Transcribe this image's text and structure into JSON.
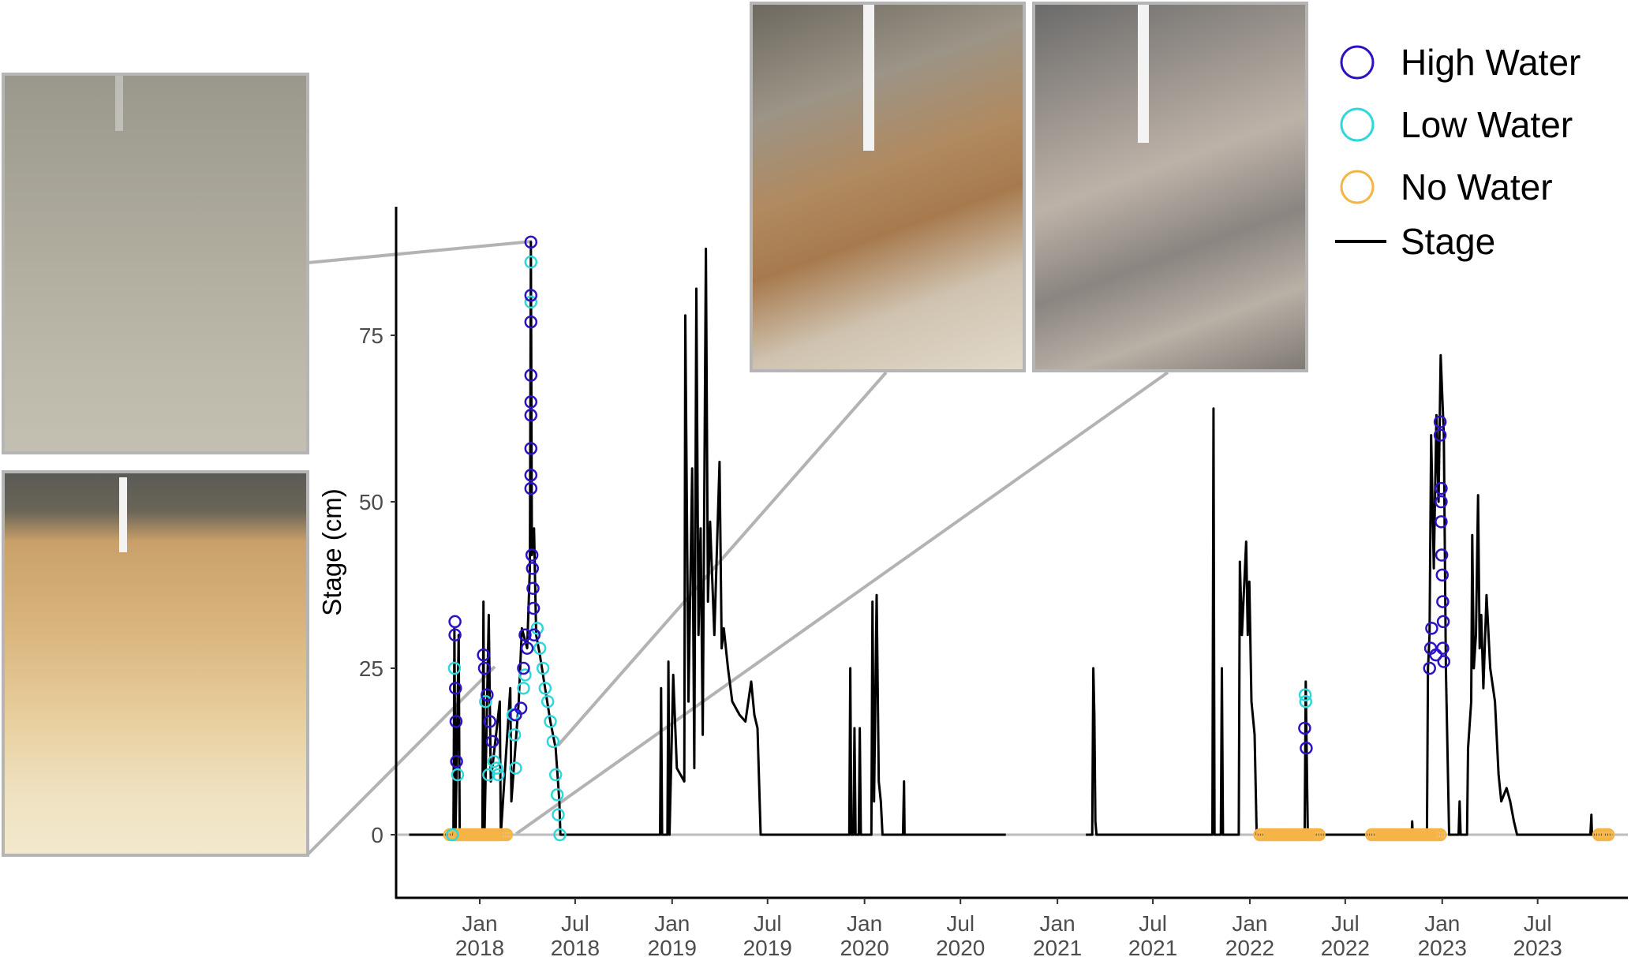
{
  "chart_data": {
    "type": "line",
    "title": "",
    "xlabel": "",
    "ylabel": "Stage (cm)",
    "xlim": [
      "2017-07-25",
      "2023-12-15"
    ],
    "ylim": [
      -10,
      95
    ],
    "grid": false,
    "y_ticks": [
      0,
      25,
      50,
      75
    ],
    "x_ticks": [
      {
        "date": "2018-01-01",
        "label1": "Jan",
        "label2": "2018"
      },
      {
        "date": "2018-07-01",
        "label1": "Jul",
        "label2": "2018"
      },
      {
        "date": "2019-01-01",
        "label1": "Jan",
        "label2": "2019"
      },
      {
        "date": "2019-07-01",
        "label1": "Jul",
        "label2": "2019"
      },
      {
        "date": "2020-01-01",
        "label1": "Jan",
        "label2": "2020"
      },
      {
        "date": "2020-07-01",
        "label1": "Jul",
        "label2": "2020"
      },
      {
        "date": "2021-01-01",
        "label1": "Jan",
        "label2": "2021"
      },
      {
        "date": "2021-07-01",
        "label1": "Jul",
        "label2": "2021"
      },
      {
        "date": "2022-01-01",
        "label1": "Jan",
        "label2": "2022"
      },
      {
        "date": "2022-07-01",
        "label1": "Jul",
        "label2": "2022"
      },
      {
        "date": "2023-01-01",
        "label1": "Jan",
        "label2": "2023"
      },
      {
        "date": "2023-07-01",
        "label1": "Jul",
        "label2": "2023"
      }
    ],
    "legend_position": "top-right",
    "legend": [
      {
        "label": "High Water",
        "kind": "circle",
        "color": "#2b12c2"
      },
      {
        "label": "Low Water",
        "kind": "circle",
        "color": "#2fd6dc"
      },
      {
        "label": "No Water",
        "kind": "circle",
        "color": "#f4b446"
      },
      {
        "label": "Stage",
        "kind": "line",
        "color": "#000000"
      }
    ],
    "stage_segments": [
      [
        [
          "2017-08-20",
          0
        ],
        [
          "2017-11-12",
          0
        ],
        [
          "2017-11-14",
          31
        ],
        [
          "2017-11-16",
          0
        ],
        [
          "2017-11-22",
          30
        ],
        [
          "2017-11-24",
          0
        ],
        [
          "2018-01-06",
          0
        ],
        [
          "2018-01-08",
          35
        ],
        [
          "2018-01-10",
          0
        ],
        [
          "2018-01-18",
          33
        ],
        [
          "2018-01-22",
          8
        ],
        [
          "2018-02-08",
          20
        ],
        [
          "2018-02-10",
          0
        ],
        [
          "2018-02-28",
          22
        ],
        [
          "2018-03-02",
          5
        ],
        [
          "2018-03-16",
          20
        ],
        [
          "2018-03-22",
          31
        ],
        [
          "2018-04-01",
          28
        ],
        [
          "2018-04-06",
          40
        ],
        [
          "2018-04-08",
          89
        ],
        [
          "2018-04-10",
          42
        ],
        [
          "2018-04-14",
          46
        ],
        [
          "2018-04-18",
          30
        ],
        [
          "2018-04-25",
          27
        ],
        [
          "2018-05-05",
          22
        ],
        [
          "2018-05-15",
          17
        ],
        [
          "2018-05-25",
          13
        ],
        [
          "2018-06-01",
          5
        ],
        [
          "2018-06-03",
          0
        ],
        [
          "2018-12-09",
          0
        ],
        [
          "2018-12-11",
          22
        ],
        [
          "2018-12-13",
          0
        ],
        [
          "2018-12-23",
          0
        ],
        [
          "2018-12-25",
          26
        ],
        [
          "2018-12-27",
          0
        ],
        [
          "2019-01-03",
          24
        ],
        [
          "2019-01-10",
          10
        ],
        [
          "2019-01-24",
          8
        ],
        [
          "2019-01-26",
          78
        ],
        [
          "2019-02-01",
          20
        ],
        [
          "2019-02-08",
          55
        ],
        [
          "2019-02-12",
          10
        ],
        [
          "2019-02-16",
          82
        ],
        [
          "2019-02-20",
          30
        ],
        [
          "2019-02-24",
          46
        ],
        [
          "2019-02-28",
          15
        ],
        [
          "2019-03-06",
          88
        ],
        [
          "2019-03-10",
          35
        ],
        [
          "2019-03-14",
          47
        ],
        [
          "2019-03-22",
          30
        ],
        [
          "2019-04-01",
          56
        ],
        [
          "2019-04-05",
          28
        ],
        [
          "2019-04-09",
          31
        ],
        [
          "2019-04-17",
          25
        ],
        [
          "2019-04-25",
          20
        ],
        [
          "2019-05-09",
          18
        ],
        [
          "2019-05-20",
          17
        ],
        [
          "2019-05-31",
          23
        ],
        [
          "2019-06-06",
          18
        ],
        [
          "2019-06-12",
          16
        ],
        [
          "2019-06-18",
          0
        ],
        [
          "2019-12-03",
          0
        ],
        [
          "2019-12-05",
          25
        ],
        [
          "2019-12-07",
          0
        ],
        [
          "2019-12-11",
          0
        ],
        [
          "2019-12-13",
          16
        ],
        [
          "2019-12-15",
          0
        ],
        [
          "2019-12-21",
          0
        ],
        [
          "2019-12-23",
          16
        ],
        [
          "2019-12-25",
          0
        ],
        [
          "2020-01-14",
          0
        ],
        [
          "2020-01-16",
          35
        ],
        [
          "2020-01-19",
          5
        ],
        [
          "2020-01-24",
          36
        ],
        [
          "2020-01-28",
          8
        ],
        [
          "2020-02-01",
          5
        ],
        [
          "2020-02-04",
          0
        ],
        [
          "2020-03-14",
          0
        ],
        [
          "2020-03-16",
          8
        ],
        [
          "2020-03-17",
          0
        ],
        [
          "2020-09-25",
          0
        ]
      ],
      [
        [
          "2021-02-24",
          0
        ],
        [
          "2021-03-08",
          0
        ],
        [
          "2021-03-10",
          25
        ],
        [
          "2021-03-12",
          18
        ],
        [
          "2021-03-14",
          2
        ],
        [
          "2021-03-16",
          0
        ],
        [
          "2021-10-22",
          0
        ],
        [
          "2021-10-24",
          64
        ],
        [
          "2021-10-26",
          0
        ],
        [
          "2021-11-07",
          0
        ],
        [
          "2021-11-09",
          25
        ],
        [
          "2021-11-11",
          0
        ],
        [
          "2021-12-11",
          0
        ],
        [
          "2021-12-13",
          41
        ],
        [
          "2021-12-17",
          30
        ],
        [
          "2021-12-25",
          44
        ],
        [
          "2021-12-28",
          30
        ],
        [
          "2021-12-31",
          38
        ],
        [
          "2022-01-04",
          20
        ],
        [
          "2022-01-10",
          15
        ],
        [
          "2022-01-14",
          0
        ],
        [
          "2022-04-15",
          0
        ],
        [
          "2022-04-17",
          23
        ],
        [
          "2022-04-21",
          0
        ],
        [
          "2022-11-04",
          0
        ],
        [
          "2022-11-05",
          2
        ],
        [
          "2022-11-06",
          0
        ],
        [
          "2022-12-03",
          0
        ],
        [
          "2022-12-05",
          25
        ],
        [
          "2022-12-08",
          30
        ],
        [
          "2022-12-11",
          60
        ],
        [
          "2022-12-16",
          40
        ],
        [
          "2022-12-21",
          63
        ],
        [
          "2022-12-25",
          50
        ],
        [
          "2022-12-29",
          72
        ],
        [
          "2023-01-04",
          60
        ],
        [
          "2023-01-08",
          25
        ],
        [
          "2023-01-14",
          0
        ],
        [
          "2023-02-01",
          0
        ],
        [
          "2023-02-03",
          5
        ],
        [
          "2023-02-05",
          0
        ],
        [
          "2023-02-17",
          0
        ],
        [
          "2023-02-19",
          13
        ],
        [
          "2023-02-25",
          20
        ],
        [
          "2023-02-27",
          45
        ],
        [
          "2023-03-02",
          25
        ],
        [
          "2023-03-06",
          30
        ],
        [
          "2023-03-10",
          51
        ],
        [
          "2023-03-13",
          28
        ],
        [
          "2023-03-16",
          33
        ],
        [
          "2023-03-20",
          22
        ],
        [
          "2023-03-26",
          36
        ],
        [
          "2023-04-02",
          25
        ],
        [
          "2023-04-11",
          20
        ],
        [
          "2023-04-18",
          9
        ],
        [
          "2023-04-23",
          5
        ],
        [
          "2023-05-03",
          7
        ],
        [
          "2023-05-10",
          5
        ],
        [
          "2023-05-17",
          2
        ],
        [
          "2023-05-23",
          0
        ],
        [
          "2023-10-09",
          0
        ],
        [
          "2023-10-11",
          3
        ],
        [
          "2023-10-12",
          0
        ],
        [
          "2023-11-20",
          0
        ]
      ]
    ],
    "high_water": [
      [
        "2017-11-15",
        32
      ],
      [
        "2017-11-15",
        30
      ],
      [
        "2017-11-16",
        22
      ],
      [
        "2017-11-17",
        17
      ],
      [
        "2017-11-18",
        11
      ],
      [
        "2018-01-08",
        27
      ],
      [
        "2018-01-10",
        25
      ],
      [
        "2018-01-15",
        21
      ],
      [
        "2018-01-20",
        17
      ],
      [
        "2018-01-25",
        14
      ],
      [
        "2018-03-10",
        18
      ],
      [
        "2018-03-20",
        19
      ],
      [
        "2018-03-25",
        25
      ],
      [
        "2018-03-28",
        30
      ],
      [
        "2018-04-01",
        28
      ],
      [
        "2018-04-08",
        89
      ],
      [
        "2018-04-08",
        81
      ],
      [
        "2018-04-08",
        77
      ],
      [
        "2018-04-08",
        69
      ],
      [
        "2018-04-08",
        65
      ],
      [
        "2018-04-08",
        63
      ],
      [
        "2018-04-08",
        58
      ],
      [
        "2018-04-08",
        54
      ],
      [
        "2018-04-08",
        52
      ],
      [
        "2018-04-10",
        42
      ],
      [
        "2018-04-11",
        40
      ],
      [
        "2018-04-12",
        37
      ],
      [
        "2018-04-13",
        34
      ],
      [
        "2018-04-14",
        30
      ],
      [
        "2022-04-15",
        16
      ],
      [
        "2022-04-18",
        13
      ],
      [
        "2022-12-08",
        25
      ],
      [
        "2022-12-10",
        28
      ],
      [
        "2022-12-12",
        31
      ],
      [
        "2022-12-20",
        27
      ],
      [
        "2022-12-28",
        62
      ],
      [
        "2022-12-28",
        60
      ],
      [
        "2022-12-30",
        52
      ],
      [
        "2022-12-30",
        50
      ],
      [
        "2022-12-30",
        47
      ],
      [
        "2022-12-31",
        42
      ],
      [
        "2023-01-01",
        39
      ],
      [
        "2023-01-02",
        35
      ],
      [
        "2023-01-03",
        32
      ],
      [
        "2023-01-02",
        28
      ],
      [
        "2023-01-04",
        26
      ]
    ],
    "low_water": [
      [
        "2017-11-10",
        0
      ],
      [
        "2017-11-14",
        25
      ],
      [
        "2017-11-20",
        9
      ],
      [
        "2018-01-12",
        20
      ],
      [
        "2018-01-18",
        9
      ],
      [
        "2018-01-28",
        11
      ],
      [
        "2018-02-02",
        10
      ],
      [
        "2018-02-05",
        9
      ],
      [
        "2018-03-05",
        18
      ],
      [
        "2018-03-08",
        15
      ],
      [
        "2018-03-10",
        10
      ],
      [
        "2018-03-25",
        22
      ],
      [
        "2018-03-28",
        24
      ],
      [
        "2018-04-08",
        86
      ],
      [
        "2018-04-08",
        80
      ],
      [
        "2018-04-20",
        31
      ],
      [
        "2018-04-25",
        28
      ],
      [
        "2018-05-01",
        25
      ],
      [
        "2018-05-05",
        22
      ],
      [
        "2018-05-10",
        20
      ],
      [
        "2018-05-15",
        17
      ],
      [
        "2018-05-20",
        14
      ],
      [
        "2018-05-25",
        9
      ],
      [
        "2018-05-28",
        6
      ],
      [
        "2018-05-30",
        3
      ],
      [
        "2018-06-02",
        0
      ],
      [
        "2022-04-16",
        21
      ],
      [
        "2022-04-17",
        20
      ]
    ],
    "no_water_periods": [
      [
        "2017-11-05",
        "2018-02-22"
      ],
      [
        "2022-01-20",
        "2022-05-15"
      ],
      [
        "2022-08-20",
        "2022-12-31"
      ],
      [
        "2023-10-25",
        "2023-11-15"
      ]
    ]
  }
}
